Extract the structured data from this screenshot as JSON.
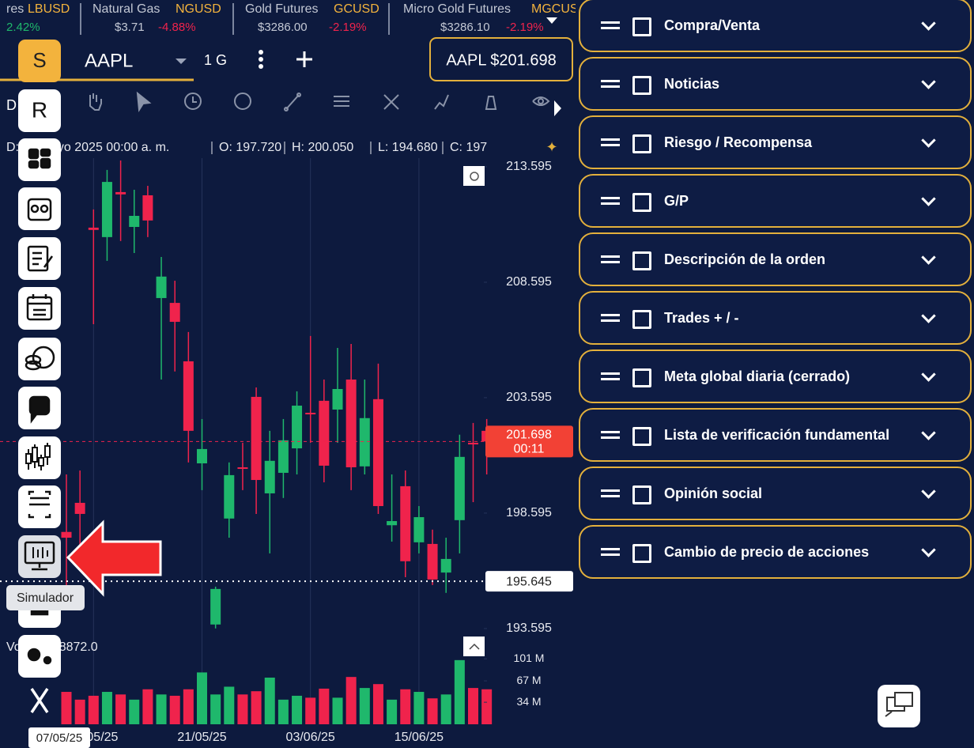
{
  "ticker": [
    {
      "name": "res",
      "symbol": "LBUSD",
      "change": "2.42%"
    },
    {
      "name": "Natural Gas",
      "symbol": "NGUSD",
      "price": "$3.71",
      "change": "-4.88%"
    },
    {
      "name": "Gold Futures",
      "symbol": "GCUSD",
      "price": "$3286.00",
      "change": "-2.19%"
    },
    {
      "name": "Micro Gold Futures",
      "symbol": "MGCUSD",
      "price": "$3286.10",
      "change": "-2.19%"
    }
  ],
  "symbol_bar": {
    "symbol": "AAPL",
    "interval": "1 G",
    "quote": "AAPL $201.698"
  },
  "toolbar": {
    "label": "D"
  },
  "sidebar": {
    "badges": [
      "S",
      "R"
    ],
    "tooltip": "Simulador"
  },
  "chart_data": {
    "type": "candlestick",
    "info": [
      "D: 28 mayo 2025 00:00 a. m.",
      "O: 197.720",
      "H: 200.050",
      "L: 194.680",
      "C: 197"
    ],
    "categories": [
      null,
      null,
      "09/05/25",
      null,
      null,
      null,
      null,
      null,
      null,
      null,
      "21/05/25",
      null,
      null,
      null,
      null,
      null,
      null,
      null,
      "03/06/25",
      null,
      null,
      null,
      null,
      null,
      null,
      null,
      "15/06/25",
      null,
      null,
      null,
      null,
      null
    ],
    "open": [
      197.78,
      199.04,
      210.96,
      210.55,
      212.5,
      210.99,
      212.36,
      207.91,
      207.7,
      205.17,
      200.75,
      193.77,
      198.36,
      200.58,
      203.63,
      199.45,
      200.34,
      201.4,
      202.94,
      203.46,
      203.08,
      204.38,
      200.62,
      203.53,
      198.07,
      199.76,
      197.33,
      197.26,
      196.02,
      198.29,
      201.64,
      202.16
    ],
    "high": [
      200.27,
      200.44,
      211.75,
      213.46,
      213.87,
      212.6,
      212.77,
      209.69,
      208.66,
      206.44,
      202.67,
      195.41,
      200.79,
      201.64,
      204.04,
      202.16,
      202.67,
      203.87,
      206.27,
      204.38,
      205.75,
      205.92,
      204.38,
      205.07,
      200.27,
      200.44,
      198.9,
      197.88,
      197.53,
      201.99,
      202.5,
      202.67
    ],
    "low": [
      194.79,
      196.85,
      206.78,
      209.52,
      210.38,
      209.86,
      210.55,
      204.38,
      204.73,
      200.79,
      199.59,
      193.6,
      197.53,
      199.59,
      198.56,
      196.85,
      199.25,
      200.27,
      201.64,
      199.93,
      201.64,
      199.59,
      200.27,
      198.56,
      197.36,
      195.82,
      196.85,
      195.48,
      195.14,
      196.85,
      199.07,
      200.27
    ],
    "close": [
      197.53,
      198.56,
      210.86,
      212.94,
      212.4,
      211.47,
      211.27,
      208.84,
      206.88,
      202.16,
      201.37,
      195.31,
      200.24,
      200.51,
      200.03,
      200.86,
      201.75,
      203.25,
      202.88,
      200.65,
      203.97,
      200.58,
      202.71,
      198.9,
      198.25,
      196.51,
      198.42,
      195.72,
      196.61,
      201.03,
      201.57,
      201.698
    ],
    "up_color": "#1fb86c",
    "down_color": "#f0234c",
    "ylim": [
      193.25,
      213.97
    ],
    "yticks": [
      193.595,
      198.595,
      203.595,
      208.595,
      213.595
    ],
    "last_price": 201.698,
    "countdown": "00:11",
    "crosshair": 195.645,
    "volume": {
      "label": "Vol: 50478872.0",
      "values": [
        50,
        38,
        44,
        50,
        46,
        38,
        54,
        46,
        44,
        54,
        80,
        46,
        58,
        46,
        51,
        72,
        38,
        44,
        41,
        55,
        41,
        73,
        56,
        62,
        38,
        54,
        50,
        40,
        46,
        99,
        56,
        54
      ],
      "ylim": [
        0,
        122
      ],
      "yticks": [
        {
          "value": 34,
          "label": "34 M"
        },
        {
          "value": 67,
          "label": "67 M"
        },
        {
          "value": 101,
          "label": "101 M"
        }
      ]
    },
    "hover_date": "07/05/25"
  },
  "panels": [
    "Compra/Venta",
    "Noticias",
    "Riesgo / Recompensa",
    "G/P",
    "Descripción de la orden",
    "Trades + / -",
    "Meta global diaria (cerrado)",
    "Lista de verificación fundamental",
    "Opinión social",
    "Cambio de precio de acciones"
  ]
}
